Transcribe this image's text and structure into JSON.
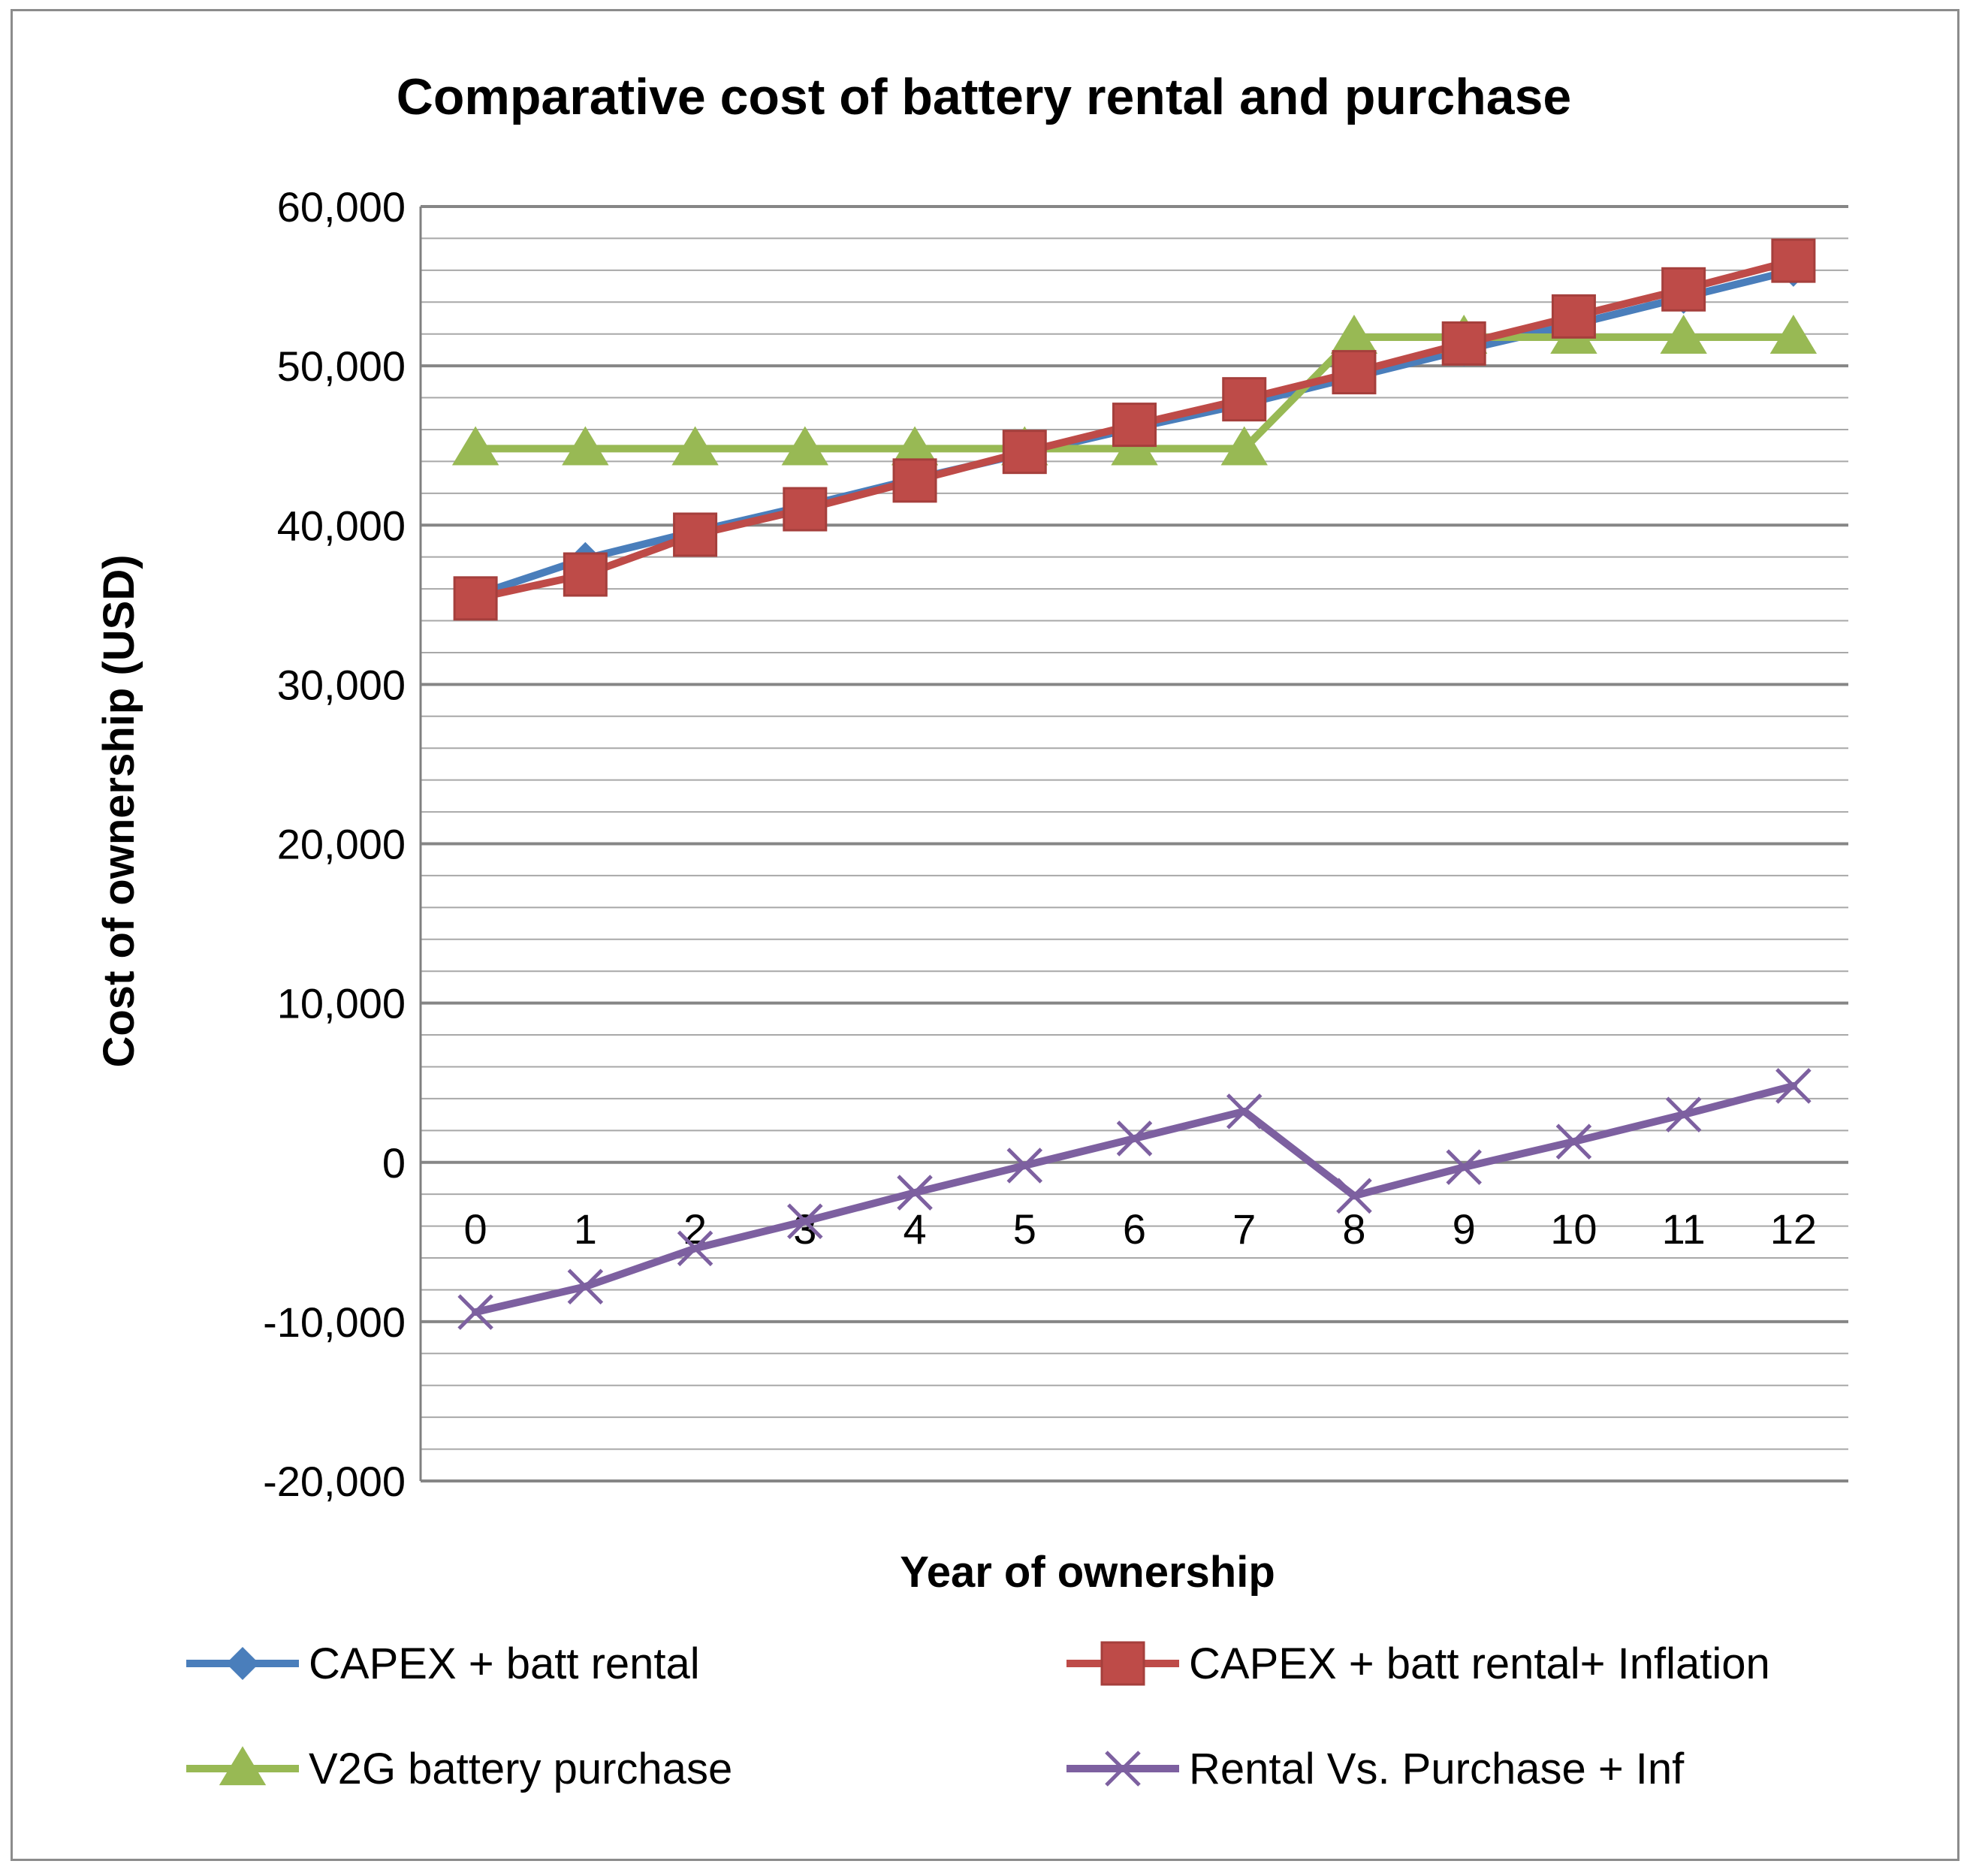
{
  "chart_data": {
    "type": "line",
    "title": "Comparative cost of battery rental and purchase",
    "xlabel": "Year of ownership",
    "ylabel": "Cost of ownership (USD)",
    "categories": [
      "0",
      "1",
      "2",
      "3",
      "4",
      "5",
      "6",
      "7",
      "8",
      "9",
      "10",
      "11",
      "12"
    ],
    "ylim": [
      -20000,
      60000
    ],
    "yticks": [
      -20000,
      -10000,
      0,
      10000,
      20000,
      30000,
      40000,
      50000,
      60000
    ],
    "ytick_labels": [
      "-20,000",
      "-10,000",
      "0",
      "10,000",
      "20,000",
      "30,000",
      "40,000",
      "50,000",
      "60,000"
    ],
    "grid": true,
    "legend_position": "bottom",
    "series": [
      {
        "name": "CAPEX + batt rental",
        "color": "#4a7ebb",
        "marker": "diamond",
        "values": [
          35600,
          37900,
          39600,
          41200,
          42900,
          44500,
          46100,
          47600,
          49300,
          51000,
          52600,
          54300,
          56000
        ]
      },
      {
        "name": "CAPEX + batt rental+ Inflation",
        "color": "#be4b48",
        "marker": "square",
        "values": [
          35400,
          36900,
          39400,
          41000,
          42800,
          44600,
          46300,
          47900,
          49600,
          51400,
          53100,
          54800,
          56600
        ]
      },
      {
        "name": "V2G battery purchase",
        "color": "#98b954",
        "marker": "triangle",
        "values": [
          44800,
          44800,
          44800,
          44800,
          44800,
          44800,
          44800,
          44800,
          51800,
          51800,
          51800,
          51800,
          51800
        ]
      },
      {
        "name": "Rental Vs. Purchase + Inf",
        "color": "#7d60a0",
        "marker": "x",
        "values": [
          -9400,
          -7800,
          -5400,
          -3700,
          -1900,
          -200,
          1500,
          3200,
          -2100,
          -300,
          1300,
          3000,
          4800
        ]
      }
    ]
  }
}
